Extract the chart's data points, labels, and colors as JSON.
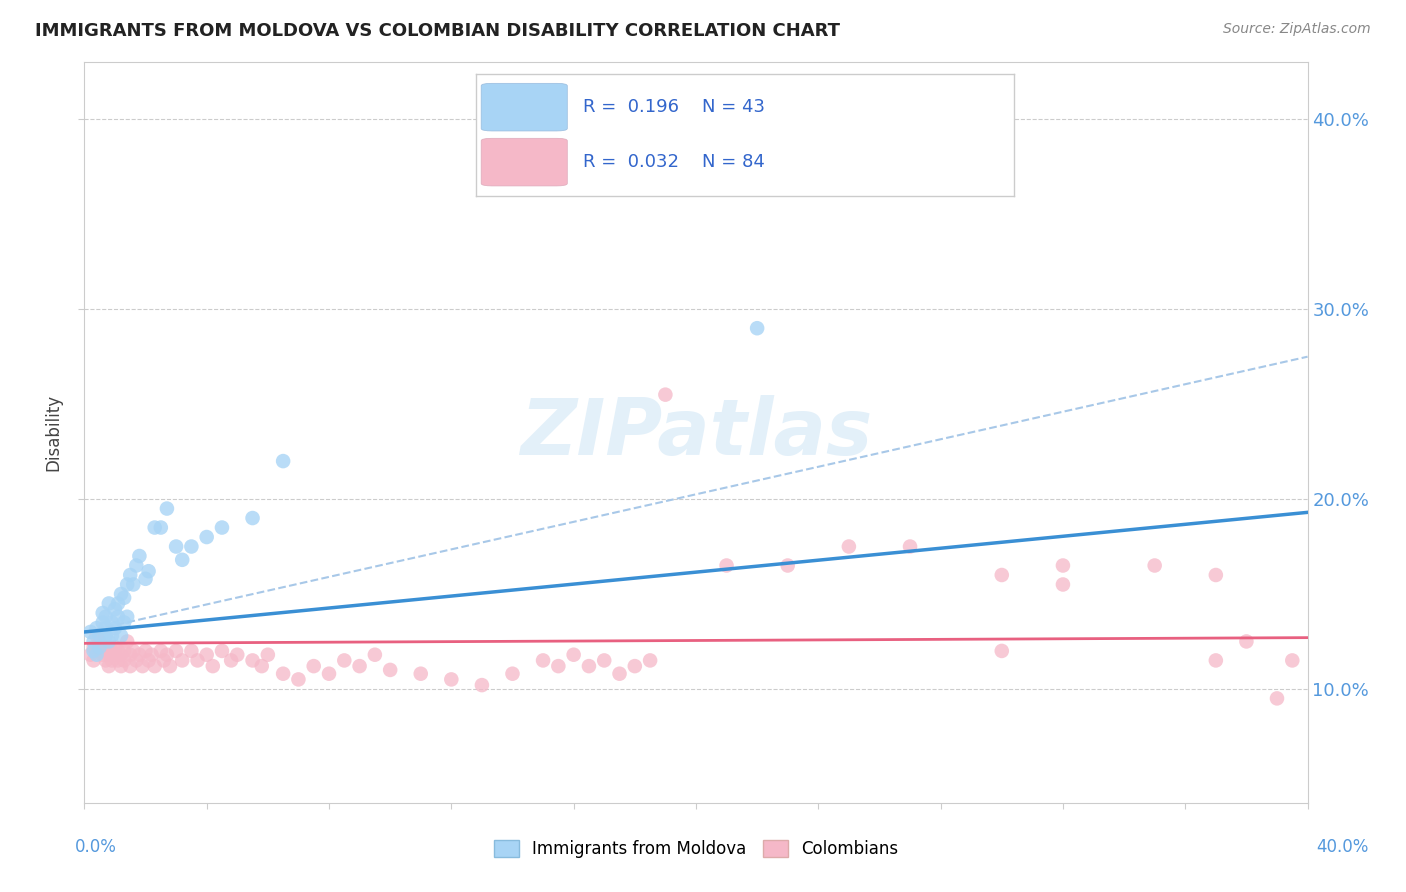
{
  "title": "IMMIGRANTS FROM MOLDOVA VS COLOMBIAN DISABILITY CORRELATION CHART",
  "source": "Source: ZipAtlas.com",
  "ylabel": "Disability",
  "xlim": [
    0.0,
    0.4
  ],
  "ylim": [
    0.04,
    0.43
  ],
  "y_ticks": [
    0.1,
    0.2,
    0.3,
    0.4
  ],
  "y_tick_labels": [
    "10.0%",
    "20.0%",
    "30.0%",
    "40.0%"
  ],
  "legend_blue_R": "0.196",
  "legend_blue_N": "43",
  "legend_pink_R": "0.032",
  "legend_pink_N": "84",
  "blue_color": "#a8d4f5",
  "pink_color": "#f5b8c8",
  "blue_line_color": "#3a8fd4",
  "pink_line_color": "#e86080",
  "dash_line_color": "#a8c8e8",
  "watermark": "ZIPatlas",
  "blue_line_x0": 0.0,
  "blue_line_y0": 0.13,
  "blue_line_x1": 0.4,
  "blue_line_y1": 0.193,
  "pink_line_x0": 0.0,
  "pink_line_x1": 0.4,
  "pink_line_y0": 0.124,
  "pink_line_y1": 0.127,
  "dash_line_x0": 0.0,
  "dash_line_y0": 0.13,
  "dash_line_x1": 0.4,
  "dash_line_y1": 0.275,
  "blue_points_x": [
    0.002,
    0.003,
    0.003,
    0.004,
    0.004,
    0.005,
    0.005,
    0.006,
    0.006,
    0.007,
    0.007,
    0.007,
    0.008,
    0.008,
    0.009,
    0.009,
    0.01,
    0.01,
    0.011,
    0.011,
    0.012,
    0.012,
    0.013,
    0.013,
    0.014,
    0.014,
    0.015,
    0.016,
    0.017,
    0.018,
    0.02,
    0.021,
    0.023,
    0.025,
    0.027,
    0.03,
    0.032,
    0.035,
    0.04,
    0.045,
    0.055,
    0.065,
    0.22
  ],
  "blue_points_y": [
    0.13,
    0.125,
    0.12,
    0.132,
    0.118,
    0.128,
    0.122,
    0.135,
    0.14,
    0.128,
    0.132,
    0.138,
    0.145,
    0.125,
    0.135,
    0.128,
    0.142,
    0.132,
    0.138,
    0.145,
    0.15,
    0.128,
    0.148,
    0.135,
    0.155,
    0.138,
    0.16,
    0.155,
    0.165,
    0.17,
    0.158,
    0.162,
    0.185,
    0.185,
    0.195,
    0.175,
    0.168,
    0.175,
    0.18,
    0.185,
    0.19,
    0.22,
    0.29
  ],
  "pink_points_x": [
    0.002,
    0.003,
    0.003,
    0.004,
    0.005,
    0.005,
    0.006,
    0.006,
    0.007,
    0.007,
    0.008,
    0.008,
    0.009,
    0.009,
    0.01,
    0.01,
    0.011,
    0.011,
    0.012,
    0.012,
    0.013,
    0.013,
    0.014,
    0.015,
    0.015,
    0.016,
    0.017,
    0.018,
    0.019,
    0.02,
    0.021,
    0.022,
    0.023,
    0.025,
    0.026,
    0.027,
    0.028,
    0.03,
    0.032,
    0.035,
    0.037,
    0.04,
    0.042,
    0.045,
    0.048,
    0.05,
    0.055,
    0.058,
    0.06,
    0.065,
    0.07,
    0.075,
    0.08,
    0.085,
    0.09,
    0.095,
    0.1,
    0.11,
    0.12,
    0.13,
    0.14,
    0.15,
    0.155,
    0.16,
    0.165,
    0.17,
    0.175,
    0.18,
    0.185,
    0.19,
    0.21,
    0.23,
    0.25,
    0.27,
    0.3,
    0.32,
    0.35,
    0.37,
    0.3,
    0.32,
    0.37,
    0.38,
    0.39,
    0.395
  ],
  "pink_points_y": [
    0.118,
    0.122,
    0.115,
    0.128,
    0.12,
    0.125,
    0.118,
    0.122,
    0.115,
    0.12,
    0.118,
    0.112,
    0.12,
    0.115,
    0.118,
    0.122,
    0.115,
    0.12,
    0.118,
    0.112,
    0.12,
    0.115,
    0.125,
    0.118,
    0.112,
    0.12,
    0.115,
    0.118,
    0.112,
    0.12,
    0.115,
    0.118,
    0.112,
    0.12,
    0.115,
    0.118,
    0.112,
    0.12,
    0.115,
    0.12,
    0.115,
    0.118,
    0.112,
    0.12,
    0.115,
    0.118,
    0.115,
    0.112,
    0.118,
    0.108,
    0.105,
    0.112,
    0.108,
    0.115,
    0.112,
    0.118,
    0.11,
    0.108,
    0.105,
    0.102,
    0.108,
    0.115,
    0.112,
    0.118,
    0.112,
    0.115,
    0.108,
    0.112,
    0.115,
    0.255,
    0.165,
    0.165,
    0.175,
    0.175,
    0.16,
    0.165,
    0.165,
    0.16,
    0.12,
    0.155,
    0.115,
    0.125,
    0.095,
    0.115
  ]
}
